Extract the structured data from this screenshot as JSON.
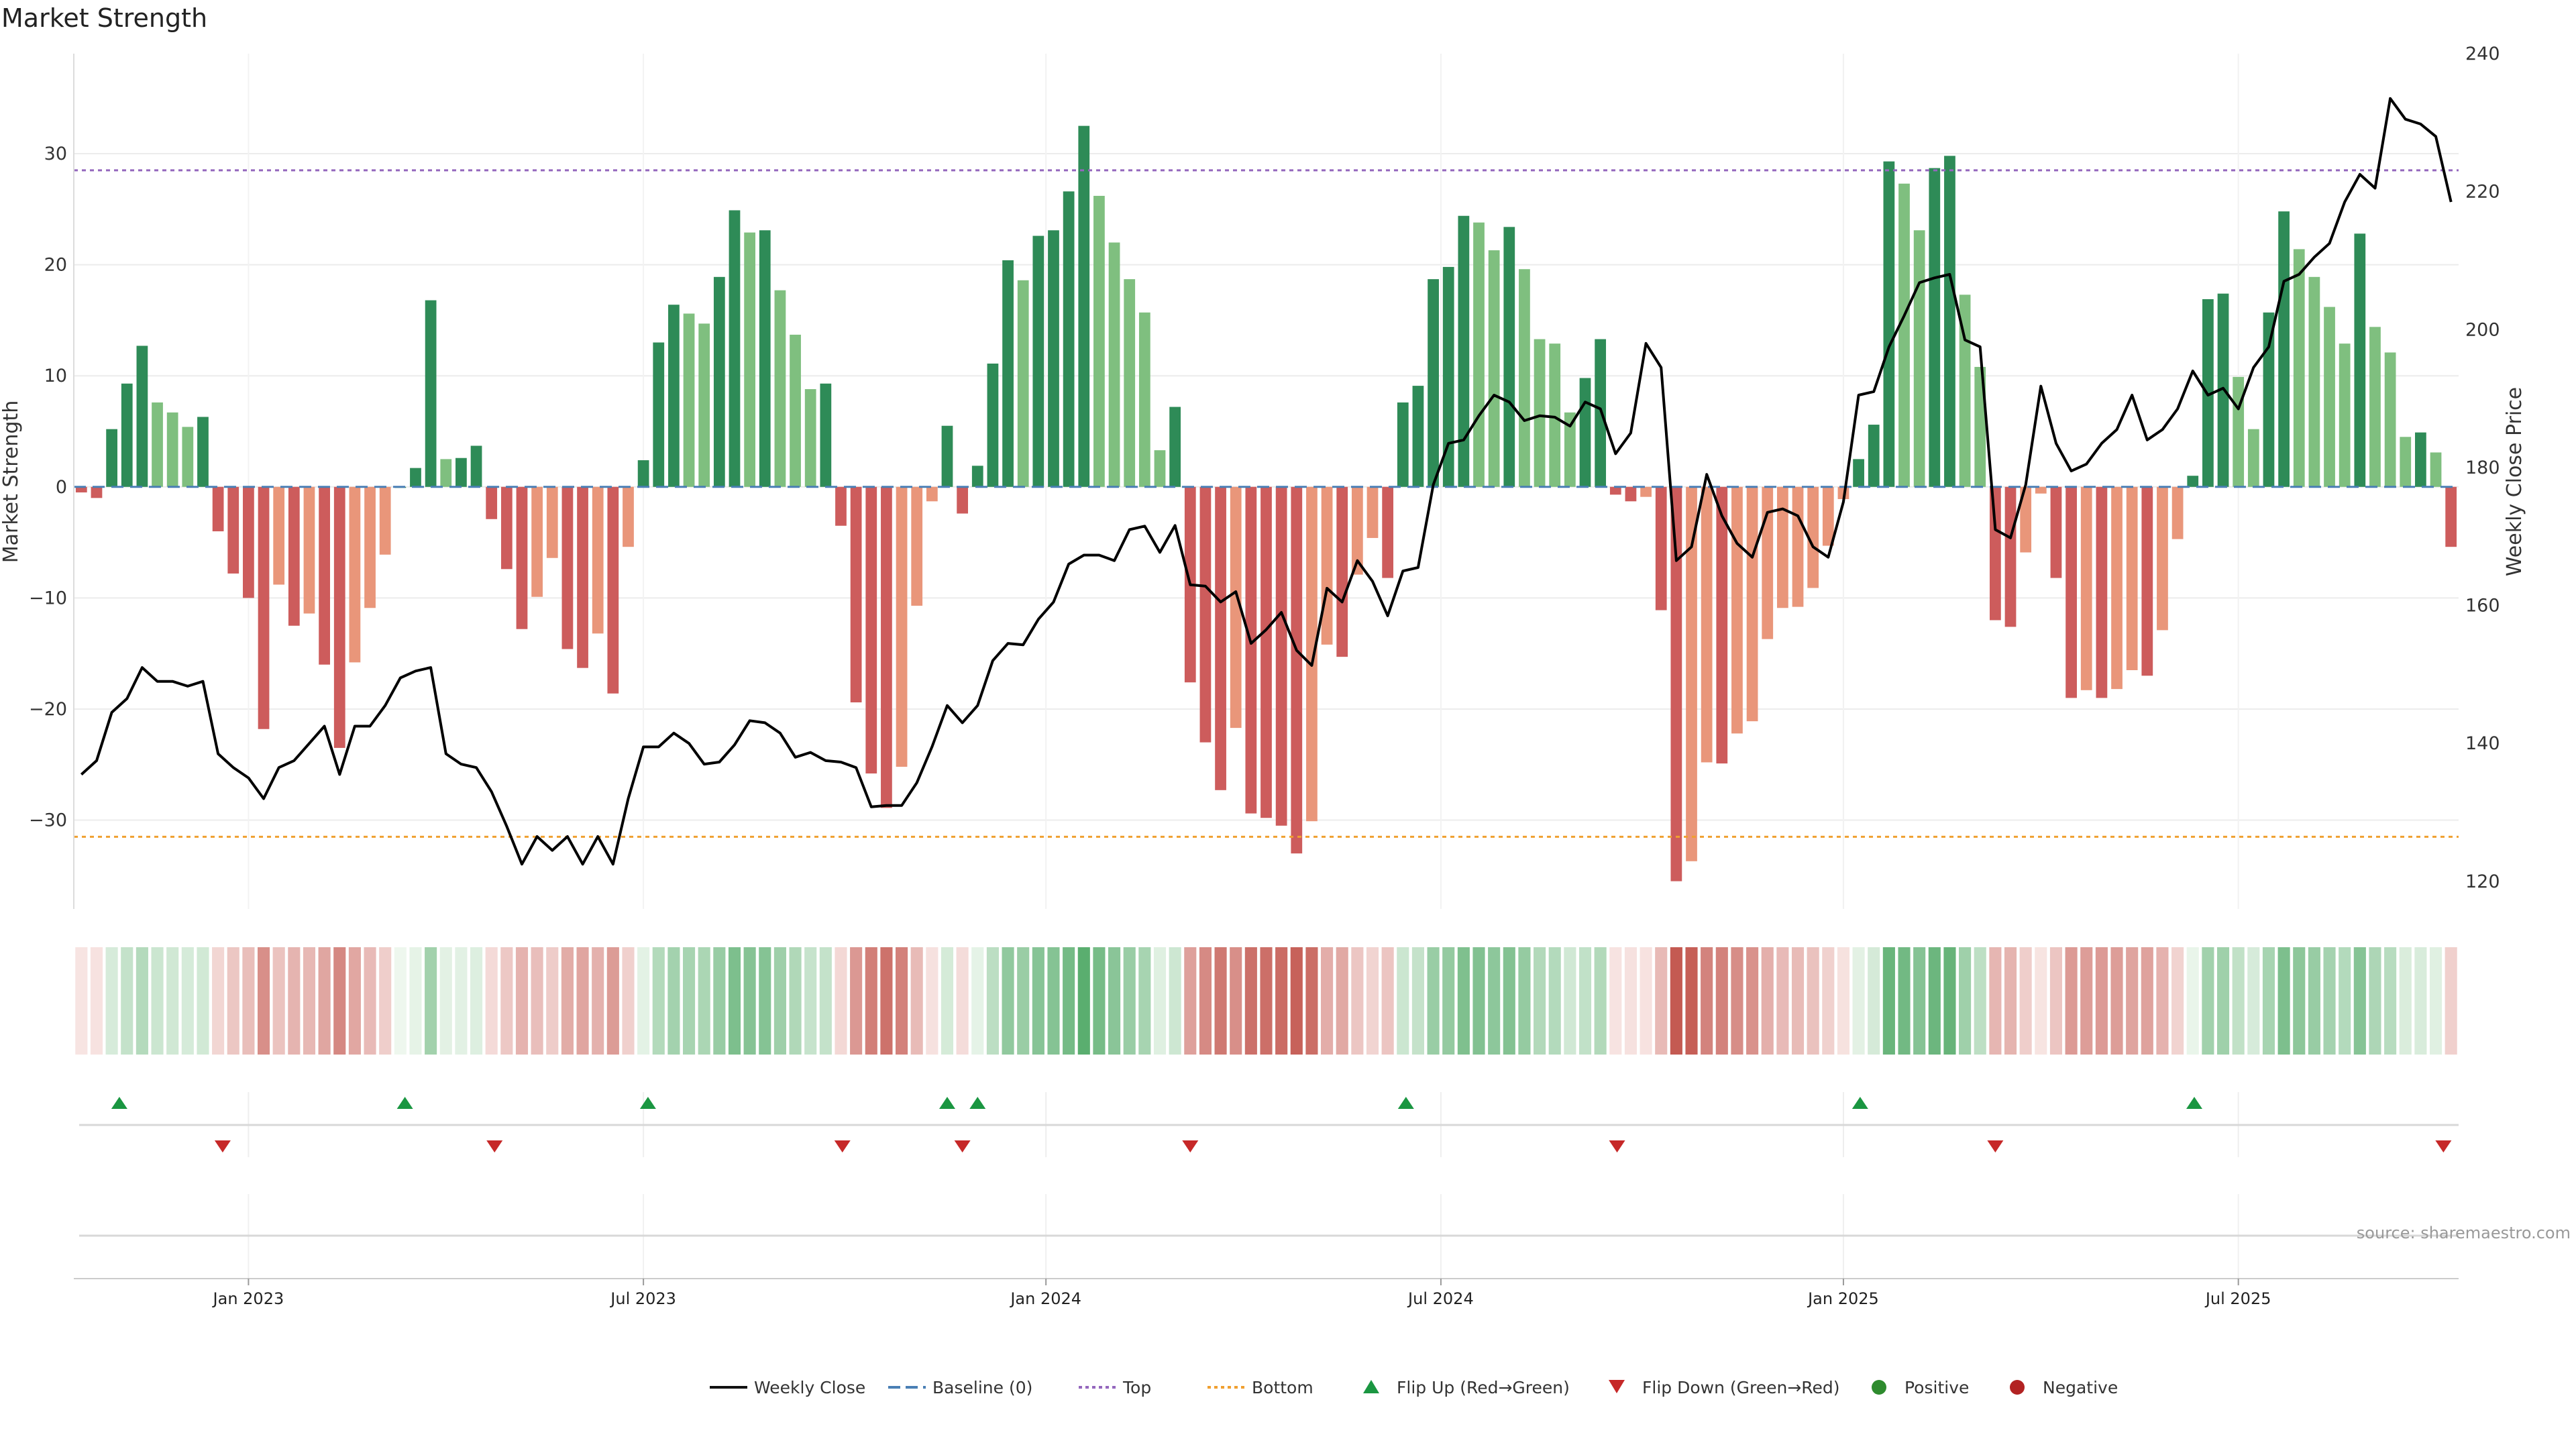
{
  "chart_data": {
    "type": "bar",
    "title": "Market Strength",
    "ylabel_left": "Market Strength",
    "ylabel_right": "Weekly Close Price",
    "left_ylim": [
      -38,
      39
    ],
    "right_ylim": [
      116,
      240
    ],
    "left_yticks": [
      -30,
      -20,
      -10,
      0,
      10,
      20,
      30
    ],
    "right_yticks": [
      120,
      140,
      160,
      180,
      200,
      220,
      240
    ],
    "top_threshold": 28.5,
    "bottom_threshold": -31.5,
    "x_ticks": [
      {
        "label": "Jan 2023",
        "week": 11
      },
      {
        "label": "Jul 2023",
        "week": 37
      },
      {
        "label": "Jan 2024",
        "week": 63.5
      },
      {
        "label": "Jul 2024",
        "week": 89.5
      },
      {
        "label": "Jan 2025",
        "week": 116
      },
      {
        "label": "Jul 2025",
        "week": 142
      }
    ],
    "strength": [
      -0.5,
      -1,
      5.2,
      9.3,
      12.7,
      7.6,
      6.7,
      5.4,
      6.3,
      -4,
      -7.8,
      -10,
      -21.8,
      -8.8,
      -12.5,
      -11.4,
      -16,
      -23.5,
      -15.8,
      -10.9,
      -6.1,
      0,
      1.7,
      16.8,
      2.5,
      2.6,
      3.7,
      -2.9,
      -7.4,
      -12.8,
      -9.9,
      -6.4,
      -14.6,
      -16.3,
      -13.2,
      -18.6,
      -5.4,
      2.4,
      13,
      16.4,
      15.6,
      14.7,
      18.9,
      24.9,
      22.9,
      23.1,
      17.7,
      13.7,
      8.8,
      9.3,
      -3.5,
      -19.4,
      -25.8,
      -28.9,
      -25.2,
      -10.7,
      -1.3,
      5.5,
      -2.4,
      1.9,
      11.1,
      20.4,
      18.6,
      22.6,
      23.1,
      26.6,
      32.5,
      26.2,
      22,
      18.7,
      15.7,
      3.3,
      7.2,
      -17.6,
      -23,
      -27.3,
      -21.7,
      -29.4,
      -29.8,
      -30.5,
      -33,
      -30.1,
      -14.2,
      -15.3,
      -7.9,
      -4.6,
      -8.2,
      7.6,
      9.1,
      18.7,
      19.8,
      24.4,
      23.8,
      21.3,
      23.4,
      19.6,
      13.3,
      12.9,
      6.7,
      9.8,
      13.3,
      -0.7,
      -1.3,
      -0.9,
      -11.1,
      -35.5,
      -33.7,
      -24.8,
      -24.9,
      -22.2,
      -21.1,
      -13.7,
      -10.9,
      -10.8,
      -9.1,
      -5.3,
      -1.1,
      2.5,
      5.6,
      29.3,
      27.3,
      23.1,
      28.7,
      29.8,
      17.3,
      10.8,
      -12,
      -12.6,
      -5.9,
      -0.6,
      -8.2,
      -19,
      -18.3,
      -19,
      -18.2,
      -16.5,
      -17,
      -12.9,
      -4.7,
      1,
      16.9,
      17.4,
      9.9,
      5.2,
      15.7,
      24.8,
      21.4,
      18.9,
      16.2,
      12.9,
      22.8,
      14.4,
      12.1,
      4.5,
      4.9,
      3.1,
      -5.4
    ],
    "weekly_close": [
      135.5,
      137.5,
      144.5,
      146.5,
      151,
      149,
      149,
      148.3,
      149,
      138.5,
      136.5,
      135,
      132,
      136.5,
      137.5,
      140,
      142.5,
      135.5,
      142.5,
      142.5,
      145.5,
      149.5,
      150.5,
      151,
      138.5,
      137,
      136.5,
      133,
      128,
      122.5,
      126.5,
      124.5,
      126.5,
      122.5,
      126.5,
      122.5,
      132,
      139.5,
      139.5,
      141.5,
      140,
      137,
      137.3,
      139.8,
      143.3,
      143,
      141.5,
      138,
      138.7,
      137.5,
      137.3,
      136.5,
      130.8,
      131,
      131,
      134.3,
      139.5,
      145.5,
      143,
      145.5,
      152,
      154.5,
      154.3,
      158,
      160.5,
      166,
      167.3,
      167.3,
      166.5,
      171,
      171.5,
      167.7,
      171.6,
      163,
      162.8,
      160.5,
      162,
      154.5,
      156.5,
      159,
      153.5,
      151.3,
      162.5,
      160.5,
      166.5,
      163.5,
      158.5,
      165,
      165.5,
      177.5,
      183.5,
      184,
      187.5,
      190.5,
      189.5,
      186.8,
      187.5,
      187.3,
      186,
      189.5,
      188.5,
      182,
      185,
      198,
      194.5,
      166.5,
      168.5,
      179,
      173,
      169,
      167,
      173.5,
      174,
      173,
      168.5,
      167,
      175,
      190.5,
      191,
      197.5,
      202,
      206.8,
      207.5,
      208,
      198.5,
      197.5,
      171,
      169.8,
      177.5,
      191.8,
      183.5,
      179.5,
      180.5,
      183.5,
      185.5,
      190.5,
      184,
      185.5,
      188.5,
      194,
      190.5,
      191.5,
      188.5,
      194.5,
      197.5,
      207,
      208,
      210.5,
      212.5,
      218.5,
      222.5,
      220.5,
      233.5,
      230.5,
      229.8,
      228,
      218.5
    ],
    "flips": [
      {
        "week": 2.5,
        "dir": "up"
      },
      {
        "week": 9.3,
        "dir": "down"
      },
      {
        "week": 21.3,
        "dir": "up"
      },
      {
        "week": 27.2,
        "dir": "down"
      },
      {
        "week": 37.3,
        "dir": "up"
      },
      {
        "week": 50.1,
        "dir": "down"
      },
      {
        "week": 57,
        "dir": "up"
      },
      {
        "week": 58,
        "dir": "down"
      },
      {
        "week": 59,
        "dir": "up"
      },
      {
        "week": 73,
        "dir": "down"
      },
      {
        "week": 87.2,
        "dir": "up"
      },
      {
        "week": 101.1,
        "dir": "down"
      },
      {
        "week": 117.1,
        "dir": "up"
      },
      {
        "week": 126,
        "dir": "down"
      },
      {
        "week": 139.1,
        "dir": "up"
      },
      {
        "week": 155.5,
        "dir": "down"
      }
    ],
    "source": "source: sharemaestro.com",
    "legend": [
      {
        "label": "Weekly Close",
        "kind": "line"
      },
      {
        "label": "Baseline (0)",
        "kind": "dash"
      },
      {
        "label": "Top",
        "kind": "dot-purple"
      },
      {
        "label": "Bottom",
        "kind": "dot-orange"
      },
      {
        "label": "Flip Up (Red→Green)",
        "kind": "tri-up"
      },
      {
        "label": "Flip Down (Green→Red)",
        "kind": "tri-down"
      },
      {
        "label": "Positive",
        "kind": "circle-green"
      },
      {
        "label": "Negative",
        "kind": "circle-red"
      }
    ],
    "colors": {
      "pos_strong": "#2e8b57",
      "pos_weak": "#7fbf7f",
      "neg_strong": "#cd5c5c",
      "neg_weak": "#e9967a",
      "price_line": "#000000",
      "baseline": "#4a7fb5",
      "top_line": "#9467bd",
      "bottom_line": "#f0a030",
      "flip_up": "#1a9641",
      "flip_down": "#c62828",
      "positive_dot": "#2e8b2e",
      "negative_dot": "#b22222"
    }
  }
}
